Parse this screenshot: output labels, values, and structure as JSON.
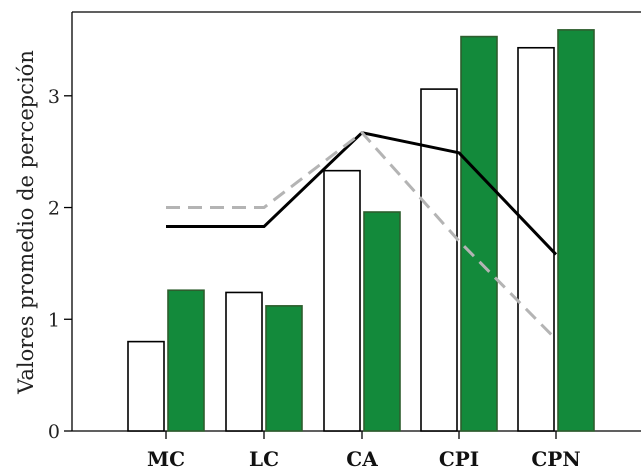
{
  "chart_data": {
    "type": "bar",
    "title": "",
    "xlabel": "",
    "ylabel": "Valores promedio de percepción",
    "categories": [
      "MC",
      "LC",
      "CA",
      "CPI",
      "CPN"
    ],
    "yticks": [
      "0",
      "1",
      "2",
      "3"
    ],
    "ylim": [
      0,
      3.75
    ],
    "grid": false,
    "legend": "none",
    "series": [
      {
        "values": [
          0.8,
          1.24,
          2.33,
          3.06,
          3.43
        ],
        "kind": "bar",
        "color": "#ffffff",
        "stroke": "#000000"
      },
      {
        "values": [
          1.26,
          1.12,
          1.96,
          3.53,
          3.59
        ],
        "kind": "bar",
        "color": "#138a3b",
        "stroke": "#2e5e2e"
      },
      {
        "values": [
          1.83,
          1.83,
          2.67,
          2.49,
          1.58
        ],
        "kind": "line",
        "color": "#000000",
        "style": "solid"
      },
      {
        "values": [
          2.0,
          2.0,
          2.67,
          1.7,
          0.82
        ],
        "kind": "line",
        "color": "#b4b4b4",
        "style": "dashed"
      }
    ]
  }
}
